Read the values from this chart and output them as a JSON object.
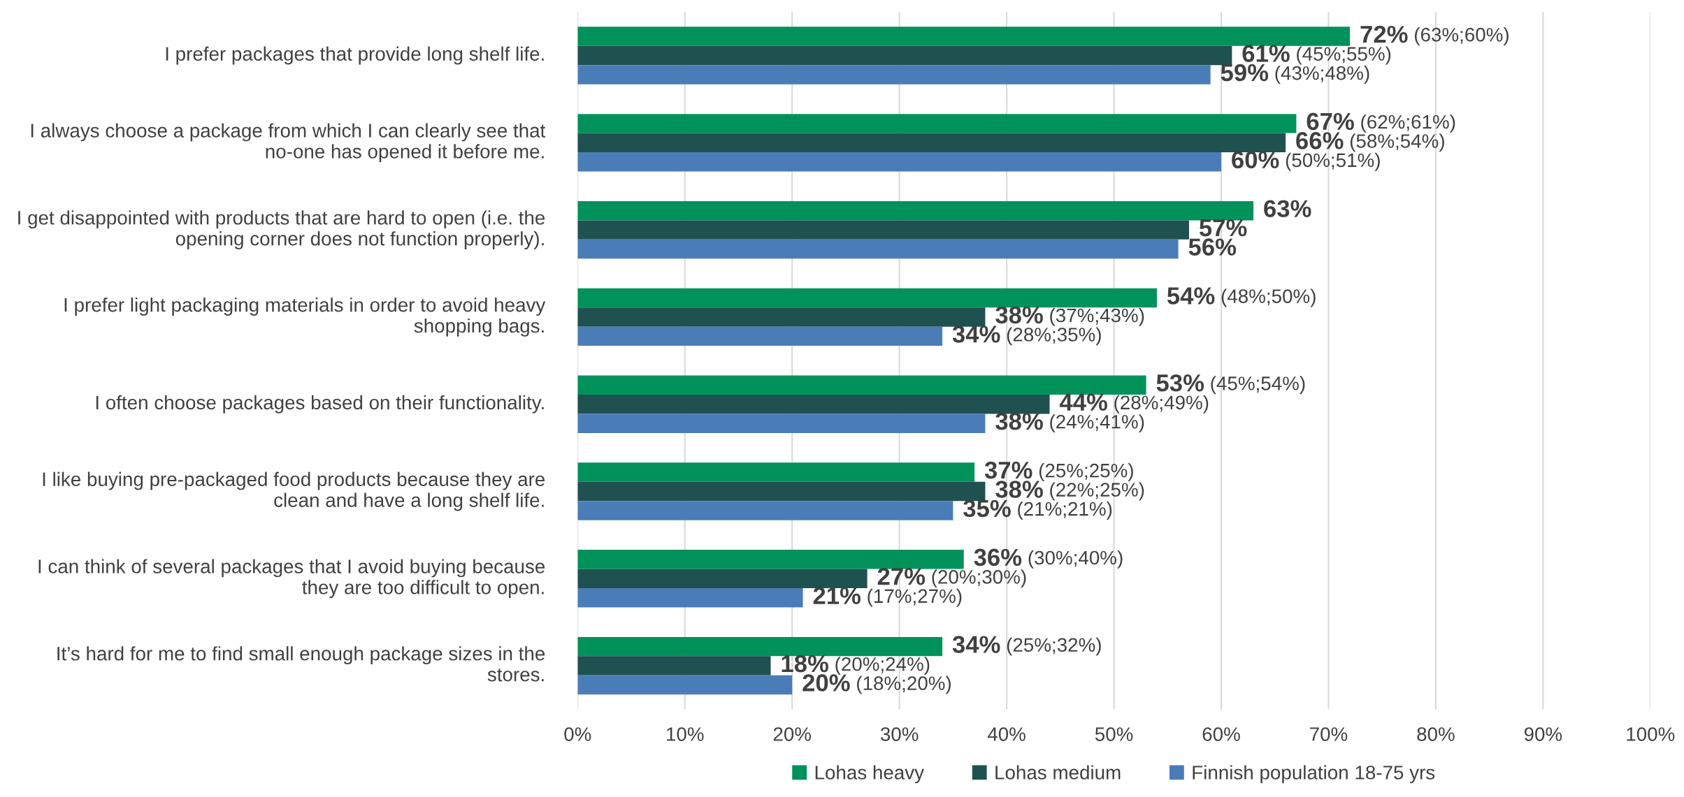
{
  "chart_data": {
    "type": "bar",
    "orientation": "horizontal",
    "categories": [
      "I prefer packages that provide long shelf life.",
      "I always choose a package from which I can clearly see that no-one has opened it before me.",
      "I get disappointed with products that are hard to open (i.e. the opening corner does not function properly).",
      "I prefer light packaging materials in order to avoid heavy shopping bags.",
      "I often choose packages based on their functionality.",
      "I like buying pre-packaged food products because they are clean and have a long shelf life.",
      "I can think of several packages that I avoid buying because they are too difficult to open.",
      "It’s hard for me to find small enough package sizes in the stores."
    ],
    "series": [
      {
        "name": "Lohas heavy",
        "color": "#00925a",
        "values": [
          72,
          67,
          63,
          54,
          53,
          37,
          36,
          34
        ],
        "value_labels": [
          "72% (63%;60%)",
          "67% (62%;61%)",
          "63%",
          "54% (48%;50%)",
          "53% (45%;54%)",
          "37% (25%;25%)",
          "36% (30%;40%)",
          "34% (25%;32%)"
        ]
      },
      {
        "name": "Lohas medium",
        "color": "#1f5150",
        "values": [
          61,
          66,
          57,
          38,
          44,
          38,
          27,
          18
        ],
        "value_labels": [
          "61% (45%;55%)",
          "66% (58%;54%)",
          "57%",
          "38% (37%;43%)",
          "44% (28%;49%)",
          "38% (22%;25%)",
          "27% (20%;30%)",
          "18% (20%;24%)"
        ]
      },
      {
        "name": "Finnish population 18-75 yrs",
        "color": "#4a7db8",
        "values": [
          59,
          60,
          56,
          34,
          38,
          35,
          21,
          20
        ],
        "value_labels": [
          "59% (43%;48%)",
          "60% (50%;51%)",
          "56%",
          "34% (28%;35%)",
          "38% (24%;41%)",
          "35% (21%;21%)",
          "21% (17%;27%)",
          "20% (18%;20%)"
        ]
      }
    ],
    "xlim": [
      0,
      100
    ],
    "xticks": [
      {
        "value": 0,
        "label": "0%"
      },
      {
        "value": 10,
        "label": "10%"
      },
      {
        "value": 20,
        "label": "20%"
      },
      {
        "value": 30,
        "label": "30%"
      },
      {
        "value": 40,
        "label": "40%"
      },
      {
        "value": 50,
        "label": "50%"
      },
      {
        "value": 60,
        "label": "60%"
      },
      {
        "value": 70,
        "label": "70%"
      },
      {
        "value": 80,
        "label": "80%"
      },
      {
        "value": 90,
        "label": "90%"
      },
      {
        "value": 100,
        "label": "100%"
      }
    ],
    "grid": "x",
    "legend": "bottom"
  }
}
